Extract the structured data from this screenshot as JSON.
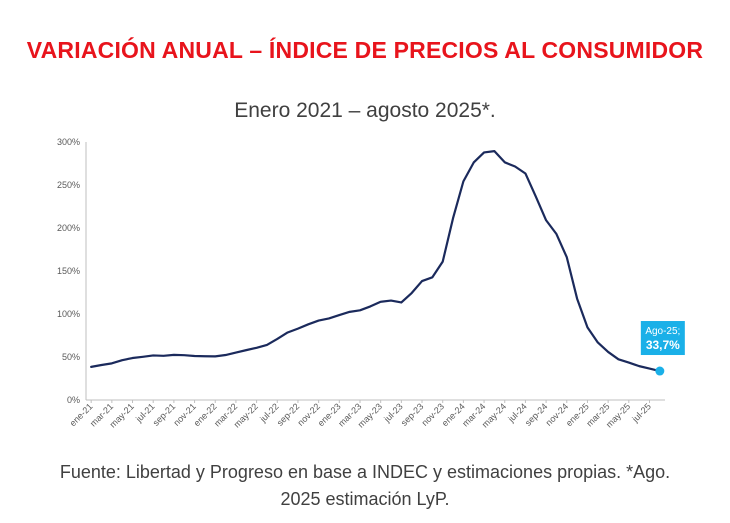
{
  "title": "VARIACIÓN ANUAL – ÍNDICE DE PRECIOS AL CONSUMIDOR",
  "subtitle": "Enero 2021 – agosto 2025*.",
  "footer": "Fuente: Libertad y Progreso en base a INDEC y estimaciones propias. *Ago. 2025 estimación LyP.",
  "colors": {
    "title": "#e8141c",
    "line": "#1b2a5c",
    "highlight": "#1ab0e8",
    "axis": "#bfbfbf"
  },
  "chart_data": {
    "type": "line",
    "title": "VARIACIÓN ANUAL – ÍNDICE DE PRECIOS AL CONSUMIDOR",
    "subtitle": "Enero 2021 – agosto 2025*.",
    "xlabel": "",
    "ylabel": "",
    "ylim": [
      0,
      300
    ],
    "yticks": [
      0,
      50,
      100,
      150,
      200,
      250,
      300
    ],
    "ytick_labels": [
      "0%",
      "50%",
      "100%",
      "150%",
      "200%",
      "250%",
      "300%"
    ],
    "grid": false,
    "legend": "none",
    "x": [
      "ene-21",
      "feb-21",
      "mar-21",
      "abr-21",
      "may-21",
      "jun-21",
      "jul-21",
      "ago-21",
      "sep-21",
      "oct-21",
      "nov-21",
      "dic-21",
      "ene-22",
      "feb-22",
      "mar-22",
      "abr-22",
      "may-22",
      "jun-22",
      "jul-22",
      "ago-22",
      "sep-22",
      "oct-22",
      "nov-22",
      "dic-22",
      "ene-23",
      "feb-23",
      "mar-23",
      "abr-23",
      "may-23",
      "jun-23",
      "jul-23",
      "ago-23",
      "sep-23",
      "oct-23",
      "nov-23",
      "dic-23",
      "ene-24",
      "feb-24",
      "mar-24",
      "abr-24",
      "may-24",
      "jun-24",
      "jul-24",
      "ago-24",
      "sep-24",
      "oct-24",
      "nov-24",
      "dic-24",
      "ene-25",
      "feb-25",
      "mar-25",
      "abr-25",
      "may-25",
      "jun-25",
      "jul-25",
      "ago-25"
    ],
    "x_tick_labels": [
      "ene-21",
      "mar-21",
      "may-21",
      "jul-21",
      "sep-21",
      "nov-21",
      "ene-22",
      "mar-22",
      "may-22",
      "jul-22",
      "sep-22",
      "nov-22",
      "ene-23",
      "mar-23",
      "may-23",
      "jul-23",
      "sep-23",
      "nov-23",
      "ene-24",
      "mar-24",
      "may-24",
      "jul-24",
      "sep-24",
      "nov-24",
      "ene-25",
      "mar-25",
      "may-25",
      "jul-25"
    ],
    "series": [
      {
        "values": [
          38.5,
          40.7,
          42.6,
          46.3,
          48.8,
          50.2,
          51.8,
          51.4,
          52.5,
          52.1,
          51.2,
          50.9,
          50.7,
          52.3,
          55.1,
          58.0,
          60.7,
          64.0,
          71.0,
          78.5,
          83.0,
          88.0,
          92.4,
          94.8,
          98.8,
          102.5,
          104.3,
          108.8,
          114.2,
          115.6,
          113.4,
          124.4,
          138.3,
          142.7,
          160.9,
          211.4,
          254.2,
          276.2,
          287.9,
          289.4,
          276.4,
          271.5,
          263.4,
          236.7,
          209.0,
          193.0,
          166.0,
          117.8,
          84.5,
          66.9,
          55.9,
          47.3,
          43.5,
          39.4,
          36.6,
          33.7
        ]
      }
    ],
    "highlight": {
      "x": "ago-25",
      "value": 33.7,
      "label_line1": "Ago-25;",
      "label_line2": "33,7%"
    }
  }
}
